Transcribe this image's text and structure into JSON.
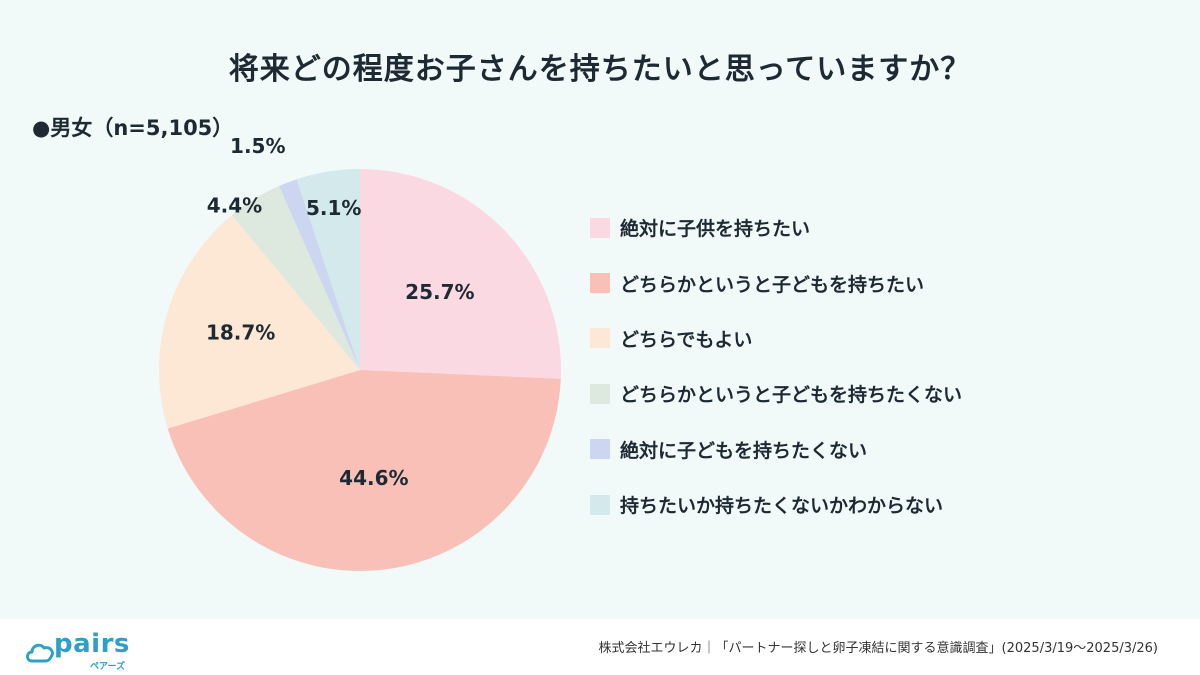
{
  "header": {
    "title": "将来どの程度お子さんを持ちたいと思っていますか？",
    "sample_label": "●男女（n=5,105）"
  },
  "chart_data": {
    "type": "pie",
    "title": "将来どの程度お子さんを持ちたいと思っていますか？",
    "subtitle": "男女（n=5,105）",
    "start": "12 o'clock, clockwise",
    "legend_position": "right",
    "slices": [
      {
        "label": "絶対に子供を持ちたい",
        "value": 25.7,
        "display": "25.7%",
        "color": "#fbd9e2"
      },
      {
        "label": "どちらかというと子どもを持ちたい",
        "value": 44.6,
        "display": "44.6%",
        "color": "#f9c0b8"
      },
      {
        "label": "どちらでもよい",
        "value": 18.7,
        "display": "18.7%",
        "color": "#fce8d5"
      },
      {
        "label": "どちらかというと子どもを持ちたくない",
        "value": 4.4,
        "display": "4.4%",
        "color": "#dde8df"
      },
      {
        "label": "絶対に子どもを持ちたくない",
        "value": 1.5,
        "display": "1.5%",
        "color": "#cdd6f1"
      },
      {
        "label": "持ちたいか持ちたくないかわからない",
        "value": 5.1,
        "display": "5.1%",
        "color": "#d4e9ec"
      }
    ]
  },
  "footer": {
    "logo_text": "pairs",
    "logo_kana": "ペアーズ",
    "source": "株式会社エウレカ｜「パートナー探しと卵子凍結に関する意識調査」(2025/3/19〜2025/3/26)"
  }
}
